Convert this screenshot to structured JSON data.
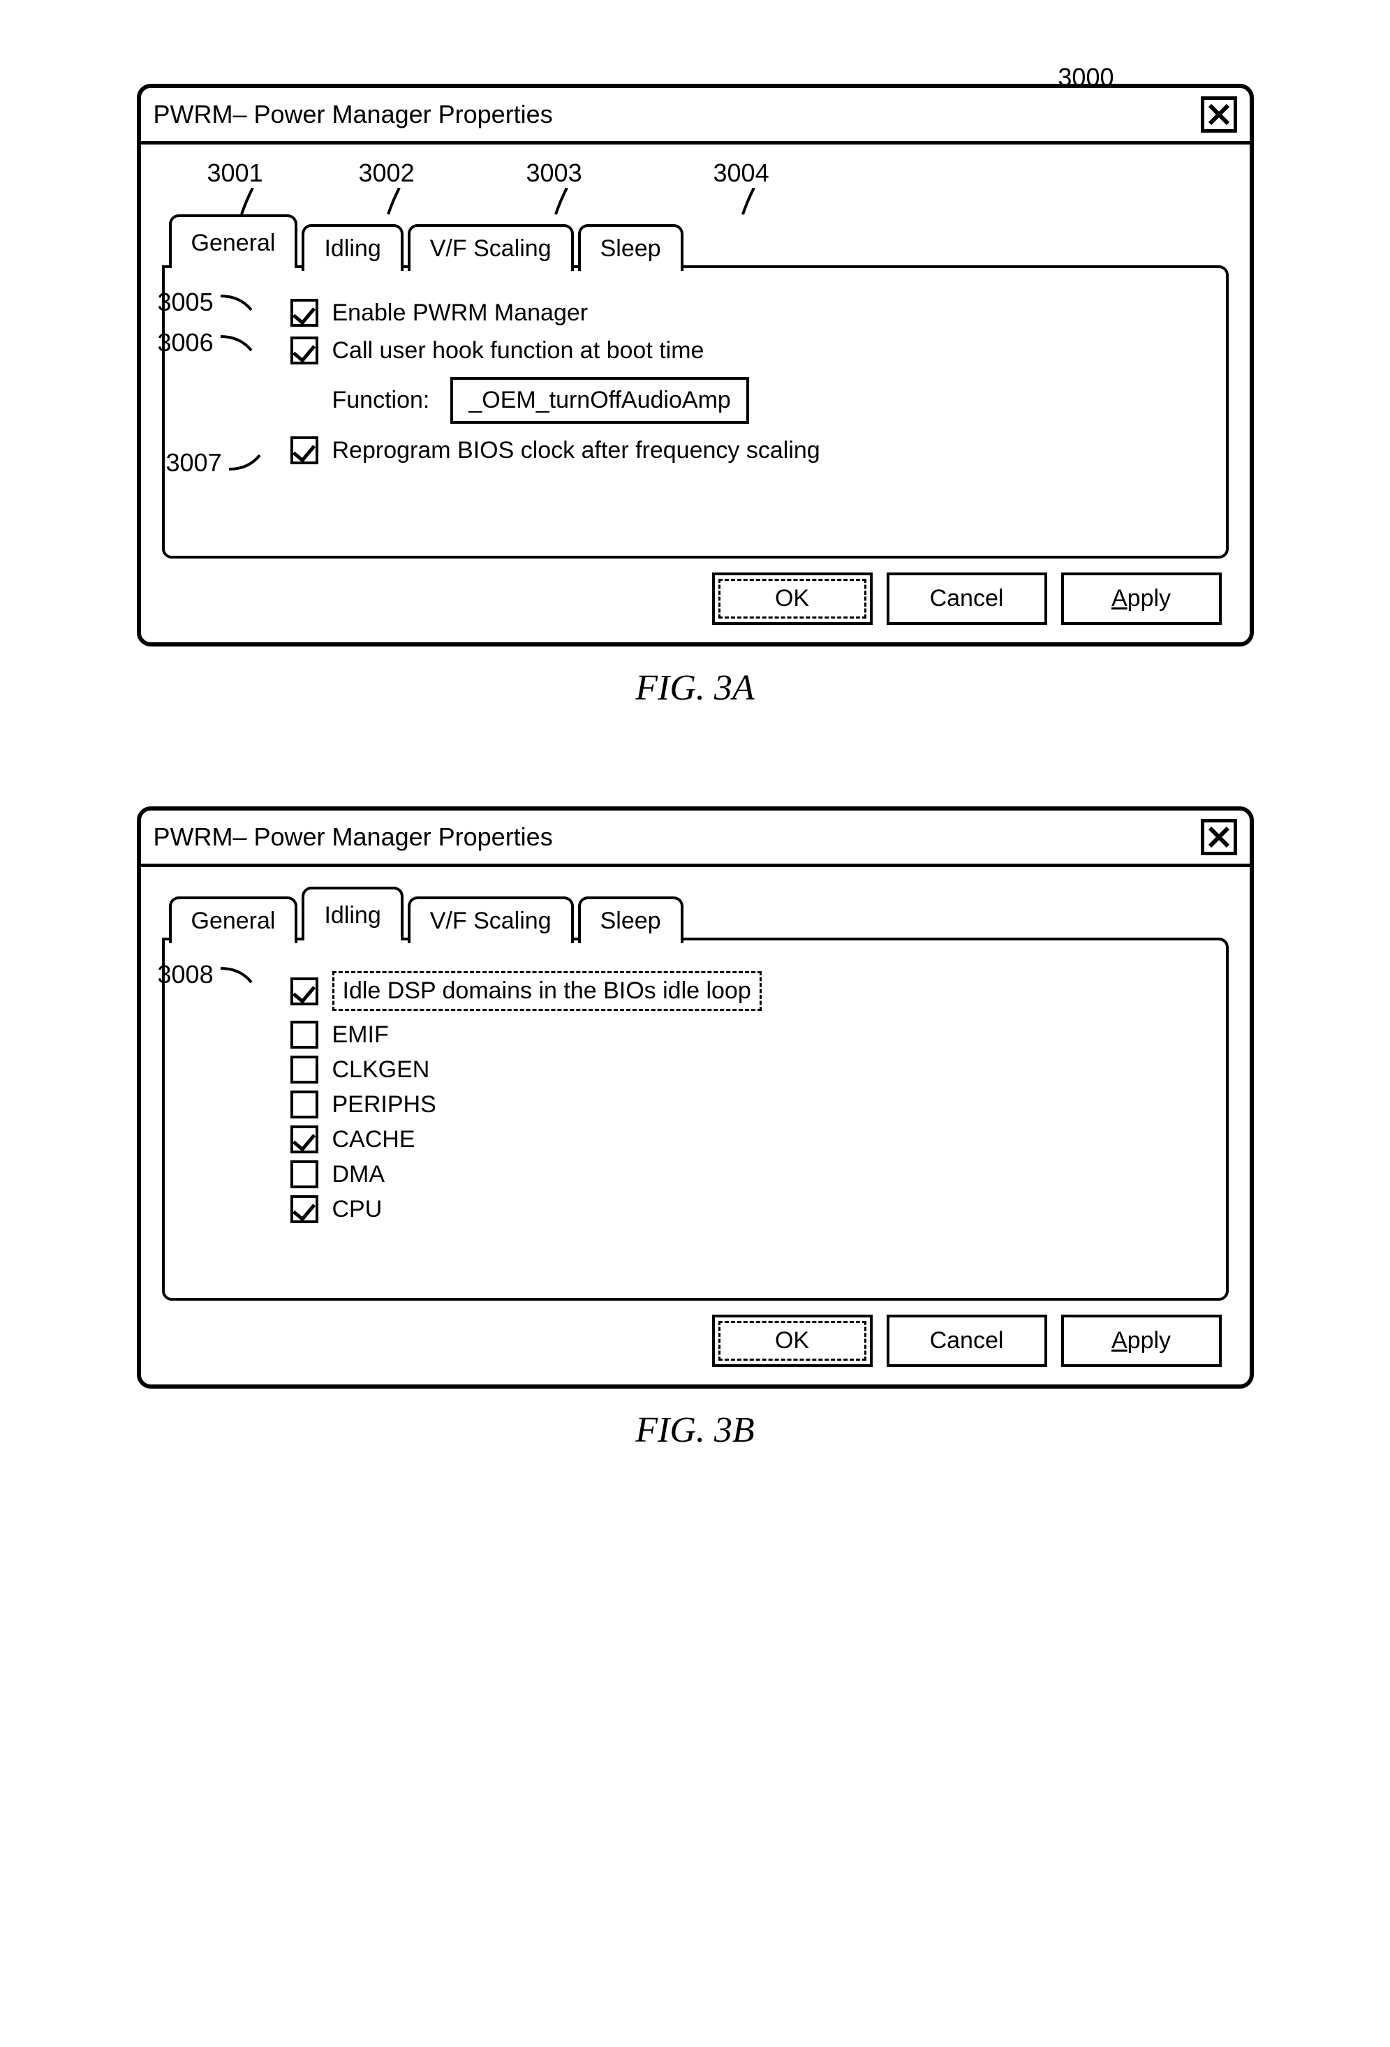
{
  "figA": {
    "refnum": "3000",
    "title": "PWRM– Power Manager Properties",
    "tab_anns": {
      "a1": "3001",
      "a2": "3002",
      "a3": "3003",
      "a4": "3004"
    },
    "tabs": {
      "general": "General",
      "idling": "Idling",
      "vf": "V/F Scaling",
      "sleep": "Sleep"
    },
    "cb_anns": {
      "c1": "3005",
      "c2": "3006",
      "c3": "3007"
    },
    "cb1_label": "Enable PWRM Manager",
    "cb2_label": "Call user hook function at boot time",
    "func_label": "Function:",
    "func_value": "_OEM_turnOffAudioAmp",
    "cb3_label": "Reprogram BIOS clock after frequency scaling",
    "buttons": {
      "ok": "OK",
      "cancel": "Cancel",
      "apply_pre": "",
      "apply_u": "A",
      "apply_post": "pply"
    },
    "caption": "FIG. 3A"
  },
  "figB": {
    "title": "PWRM– Power Manager Properties",
    "tabs": {
      "general": "General",
      "idling": "Idling",
      "vf": "V/F Scaling",
      "sleep": "Sleep"
    },
    "cb_ann": "3008",
    "cb_main_label": "Idle DSP domains in the BIOs idle loop",
    "items": [
      {
        "label": "EMIF",
        "checked": false
      },
      {
        "label": "CLKGEN",
        "checked": false
      },
      {
        "label": "PERIPHS",
        "checked": false
      },
      {
        "label": "CACHE",
        "checked": true
      },
      {
        "label": "DMA",
        "checked": false
      },
      {
        "label": "CPU",
        "checked": true
      }
    ],
    "buttons": {
      "ok": "OK",
      "cancel": "Cancel",
      "apply_u": "A",
      "apply_post": "pply"
    },
    "caption": "FIG. 3B"
  }
}
